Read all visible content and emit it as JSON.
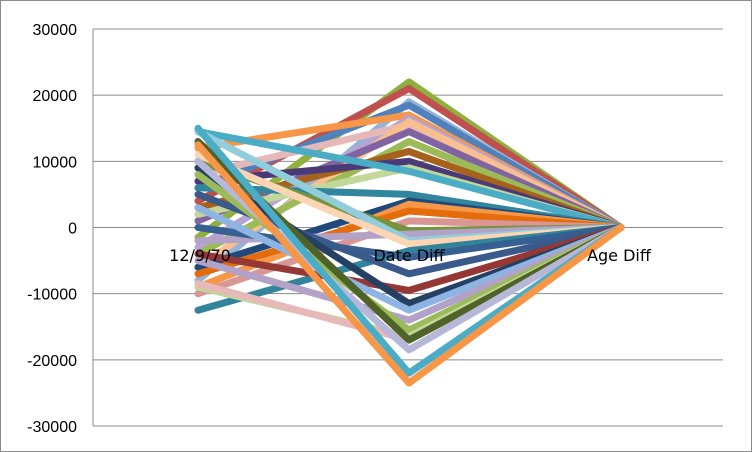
{
  "chart_data": {
    "type": "line",
    "categories": [
      "12/9/70",
      "Date Diff",
      "Age Diff"
    ],
    "ylim": [
      -30000,
      30000
    ],
    "yticks": [
      30000,
      20000,
      10000,
      0,
      -10000,
      -20000,
      -30000
    ],
    "grid": true,
    "legend": "none",
    "series": [
      {
        "color": "#8db03f",
        "values": [
          -1500,
          22000,
          0
        ]
      },
      {
        "color": "#c0504d",
        "values": [
          4000,
          21000,
          0
        ]
      },
      {
        "color": "#95b3d7",
        "values": [
          -8000,
          19000,
          0
        ]
      },
      {
        "color": "#4f81bd",
        "values": [
          6000,
          18500,
          0
        ]
      },
      {
        "color": "#f79646",
        "values": [
          12000,
          17000,
          0
        ]
      },
      {
        "color": "#b7a3d1",
        "values": [
          -3000,
          16500,
          0
        ]
      },
      {
        "color": "#e6b9b8",
        "values": [
          8000,
          15500,
          0
        ]
      },
      {
        "color": "#fabf8f",
        "values": [
          -6000,
          16000,
          0
        ]
      },
      {
        "color": "#8064a2",
        "values": [
          1000,
          14500,
          0
        ]
      },
      {
        "color": "#9bbb59",
        "values": [
          -4000,
          13000,
          0
        ]
      },
      {
        "color": "#a6611a",
        "values": [
          3000,
          11500,
          0
        ]
      },
      {
        "color": "#4b3a78",
        "values": [
          7000,
          10000,
          0
        ]
      },
      {
        "color": "#c4d79b",
        "values": [
          2000,
          9000,
          0
        ]
      },
      {
        "color": "#4bacc6",
        "values": [
          14500,
          8500,
          0
        ]
      },
      {
        "color": "#31859c",
        "values": [
          6000,
          5000,
          0
        ]
      },
      {
        "color": "#1f497d",
        "values": [
          -6000,
          4000,
          0
        ]
      },
      {
        "color": "#f79646",
        "values": [
          -9000,
          3500,
          0
        ]
      },
      {
        "color": "#e46c0a",
        "values": [
          -7000,
          2500,
          0
        ]
      },
      {
        "color": "#d99694",
        "values": [
          -10000,
          1000,
          0
        ]
      },
      {
        "color": "#77933c",
        "values": [
          10000,
          -500,
          0
        ]
      },
      {
        "color": "#b3a2c7",
        "values": [
          -2000,
          -1000,
          0
        ]
      },
      {
        "color": "#92cddc",
        "values": [
          14500,
          -2000,
          0
        ]
      },
      {
        "color": "#fcd5b4",
        "values": [
          11000,
          -2500,
          0
        ]
      },
      {
        "color": "#31849b",
        "values": [
          -12500,
          -3500,
          0
        ]
      },
      {
        "color": "#376092",
        "values": [
          0,
          -4500,
          0
        ]
      },
      {
        "color": "#3a5a8c",
        "values": [
          5000,
          -7000,
          0
        ]
      },
      {
        "color": "#953735",
        "values": [
          -4000,
          -9500,
          0
        ]
      },
      {
        "color": "#244062",
        "values": [
          9000,
          -11500,
          0
        ]
      },
      {
        "color": "#8eb4e3",
        "values": [
          3000,
          -12500,
          0
        ]
      },
      {
        "color": "#b3a2c7",
        "values": [
          -5000,
          -14000,
          0
        ]
      },
      {
        "color": "#9bbb59",
        "values": [
          8000,
          -15500,
          0
        ]
      },
      {
        "color": "#c3d69b",
        "values": [
          -9000,
          -16500,
          0
        ]
      },
      {
        "color": "#e6b9b8",
        "values": [
          -8500,
          -17000,
          0
        ]
      },
      {
        "color": "#4f6228",
        "values": [
          13000,
          -17000,
          0
        ]
      },
      {
        "color": "#b7b7d7",
        "values": [
          10000,
          -18500,
          0
        ]
      },
      {
        "color": "#4bacc6",
        "values": [
          15000,
          -22000,
          0
        ]
      },
      {
        "color": "#f79646",
        "values": [
          12500,
          -23500,
          0
        ]
      }
    ]
  }
}
